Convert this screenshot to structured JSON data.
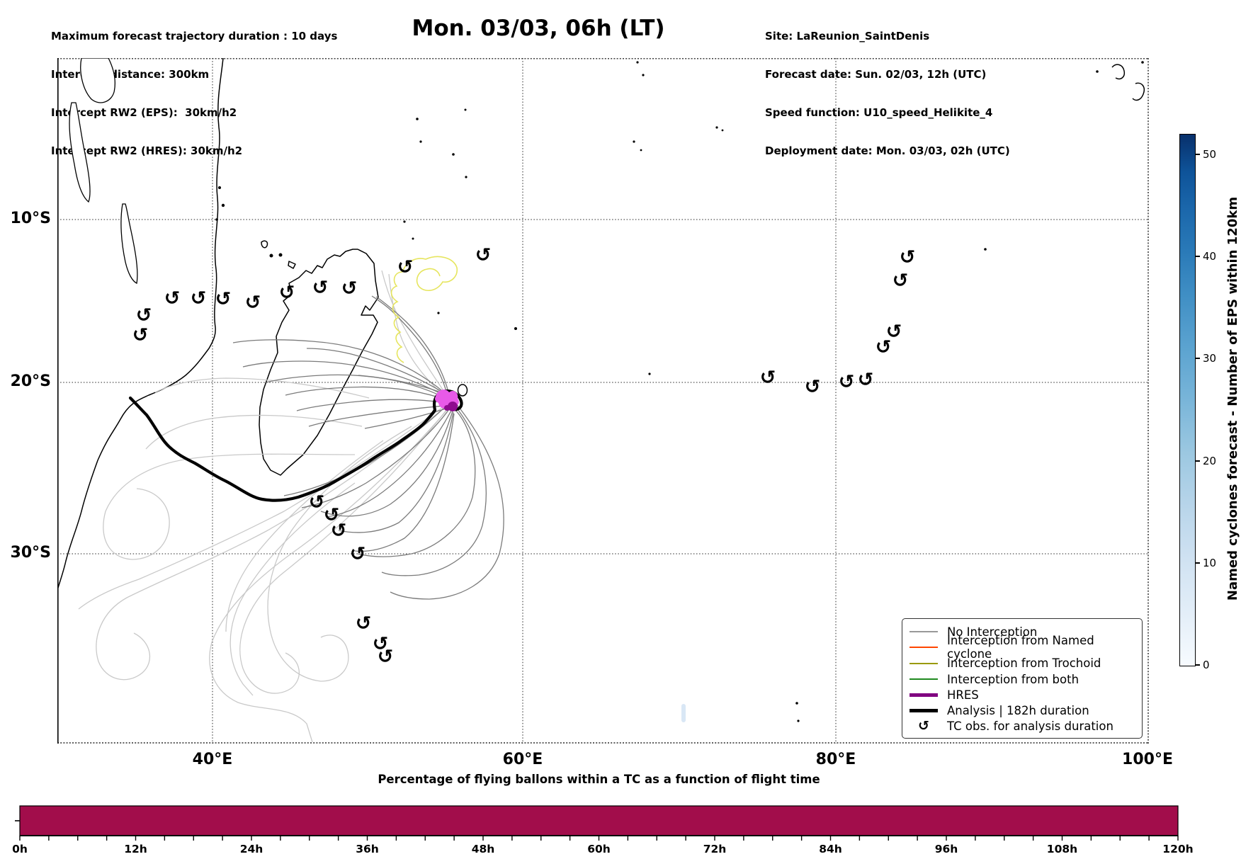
{
  "header": {
    "left_lines": [
      "Maximum forecast trajectory duration : 10 days",
      "Intercept distance: 300km",
      "Intercept RW2 (EPS):  30km/h2",
      "Intercept RW2 (HRES): 30km/h2"
    ],
    "title": "Mon. 03/03, 06h (LT)",
    "right_lines": [
      "Site: LaReunion_SaintDenis",
      "Forecast date: Sun. 02/03, 12h (UTC)",
      "Speed function: U10_speed_Helikite_4",
      "Deployment date: Mon. 03/03, 02h (UTC)"
    ]
  },
  "map": {
    "lat_labels": [
      "10°S",
      "20°S",
      "30°S"
    ],
    "lon_labels": [
      "40°E",
      "60°E",
      "80°E",
      "100°E"
    ],
    "tc_symbol": "↺"
  },
  "legend": {
    "items": [
      {
        "label": "No Interception",
        "color": "#999999",
        "line_weight": "thin"
      },
      {
        "label": "Interception from Named cyclone",
        "color": "#ff4500",
        "line_weight": "thin"
      },
      {
        "label": "Interception from Trochoid",
        "color": "#9a9a00",
        "line_weight": "thin"
      },
      {
        "label": "Interception from both",
        "color": "#1f8a1f",
        "line_weight": "thin"
      },
      {
        "label": "HRES",
        "color": "#800080",
        "line_weight": "thick"
      },
      {
        "label": "Analysis | 182h duration",
        "color": "#000000",
        "line_weight": "thick"
      },
      {
        "label": "TC obs. for analysis duration",
        "color": "#000000",
        "line_weight": "symbol"
      }
    ]
  },
  "colorbar": {
    "label": "Named cyclones forecast - Number of EPS within 120km",
    "tick_values": [
      0,
      10,
      20,
      30,
      40,
      50
    ],
    "range": [
      0,
      52
    ],
    "colormap": "Blues",
    "min_color": "#f7fbff",
    "max_color": "#08306b"
  },
  "bottom_chart": {
    "title": "Percentage of flying ballons within a TC as a function of flight time",
    "tick_labels": [
      "0h",
      "12h",
      "24h",
      "36h",
      "48h",
      "60h",
      "72h",
      "84h",
      "96h",
      "108h",
      "120h"
    ],
    "bar_color": "#a20d4b"
  },
  "chart_data": [
    {
      "type": "line",
      "title": "Mon. 03/03, 06h (LT)",
      "x_ticks": [
        "40°E",
        "60°E",
        "80°E",
        "100°E"
      ],
      "y_ticks": [
        "10°S",
        "20°S",
        "30°S"
      ],
      "grid": true,
      "legend_position": "lower right",
      "description": "Map of EPS balloon forecast trajectories over the SW Indian Ocean. A spaghetti bundle of gray (no interception) trajectories and one yellow trochoid trajectory start near La Reunion (~55.5E, 21S); a thick black analysis track (182h) loops at La Reunion then runs southwest past southern Madagascar to the Mozambique coast (~35E, 21.5S). Magenta/purple HRES cluster at the start point. Black cyclone-observation symbols are plotted along observed TC tracks in the Mozambique Channel (~33-50E, 15-17S), northeast of Madagascar, east of the domain (~88-90E, 12-22S), near 20S (~85-92E), and south of Madagascar (~48-51E, 26-36S).",
      "series": [
        {
          "name": "No Interception",
          "color": "#999999"
        },
        {
          "name": "Interception from Named cyclone",
          "color": "#ff4500"
        },
        {
          "name": "Interception from Trochoid",
          "color": "#9a9a00"
        },
        {
          "name": "Interception from both",
          "color": "#1f8a1f"
        },
        {
          "name": "HRES",
          "color": "#800080"
        },
        {
          "name": "Analysis | 182h duration",
          "color": "#000000"
        }
      ]
    },
    {
      "type": "bar",
      "title": "Percentage of flying ballons within a TC as a function of flight time",
      "categories": [
        "0h",
        "12h",
        "24h",
        "36h",
        "48h",
        "60h",
        "72h",
        "84h",
        "96h",
        "108h",
        "120h"
      ],
      "values": [
        100,
        100,
        100,
        100,
        100,
        100,
        100,
        100,
        100,
        100,
        100
      ],
      "xlabel": "flight time",
      "ylabel": "",
      "y_axis_unlabeled": true,
      "bar_color": "#a20d4b"
    }
  ]
}
